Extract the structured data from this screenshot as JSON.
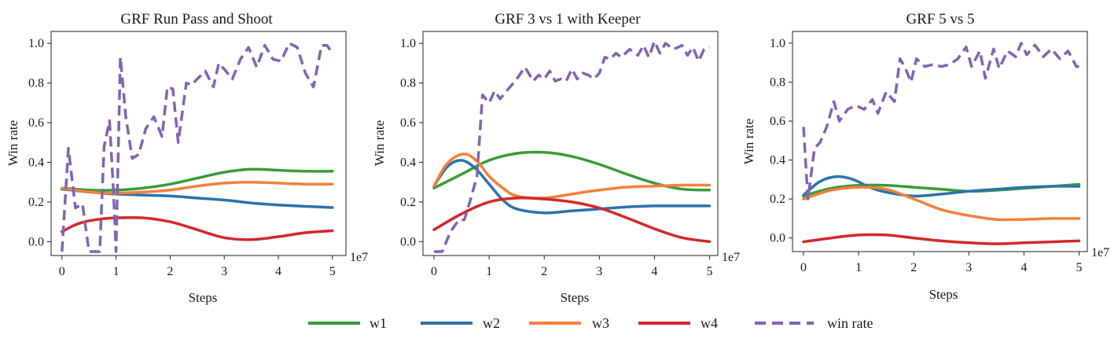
{
  "figure": {
    "legend": [
      {
        "key": "w1",
        "label": "w1",
        "color": "#3a9c3a",
        "dash": false
      },
      {
        "key": "w2",
        "label": "w2",
        "color": "#2c73ac",
        "dash": false
      },
      {
        "key": "w3",
        "label": "w3",
        "color": "#f5803a",
        "dash": false
      },
      {
        "key": "w4",
        "label": "w4",
        "color": "#d3282c",
        "dash": false
      },
      {
        "key": "win",
        "label": "win rate",
        "color": "#8064b4",
        "dash": true
      }
    ]
  },
  "chart_data": [
    {
      "type": "line",
      "title": "GRF Run Pass and Shoot",
      "xlabel": "Steps",
      "ylabel": "Win rate",
      "x_multiplier_label": "1e7",
      "xlim": [
        -0.2,
        5.25
      ],
      "ylim": [
        -0.07,
        1.06
      ],
      "xticks": [
        0,
        1,
        2,
        3,
        4,
        5
      ],
      "xtick_labels": [
        "0",
        "1",
        "2",
        "3",
        "4",
        "5"
      ],
      "yticks": [
        0.0,
        0.2,
        0.4,
        0.6,
        0.8,
        1.0
      ],
      "ytick_labels": [
        "0.0",
        "0.2",
        "0.4",
        "0.6",
        "0.8",
        "1.0"
      ],
      "series": [
        {
          "name": "w1",
          "color": "#3a9c3a",
          "dash": false,
          "x": [
            0,
            0.5,
            1.0,
            1.5,
            2.0,
            2.5,
            3.0,
            3.5,
            4.0,
            4.5,
            5.0
          ],
          "y": [
            0.27,
            0.26,
            0.26,
            0.27,
            0.29,
            0.32,
            0.35,
            0.365,
            0.36,
            0.355,
            0.355
          ]
        },
        {
          "name": "w2",
          "color": "#2c73ac",
          "dash": false,
          "x": [
            0,
            0.5,
            1.0,
            1.5,
            2.0,
            2.5,
            3.0,
            3.5,
            4.0,
            4.5,
            5.0
          ],
          "y": [
            0.265,
            0.25,
            0.24,
            0.235,
            0.23,
            0.22,
            0.21,
            0.195,
            0.185,
            0.178,
            0.172
          ]
        },
        {
          "name": "w3",
          "color": "#f5803a",
          "dash": false,
          "x": [
            0,
            0.5,
            1.0,
            1.5,
            2.0,
            2.5,
            3.0,
            3.5,
            4.0,
            4.5,
            5.0
          ],
          "y": [
            0.27,
            0.25,
            0.245,
            0.25,
            0.26,
            0.28,
            0.295,
            0.3,
            0.295,
            0.29,
            0.29
          ]
        },
        {
          "name": "w4",
          "color": "#d3282c",
          "dash": false,
          "x": [
            0,
            0.25,
            0.5,
            0.75,
            1.0,
            1.5,
            2.0,
            2.5,
            3.0,
            3.5,
            4.0,
            4.5,
            5.0
          ],
          "y": [
            0.05,
            0.085,
            0.105,
            0.115,
            0.12,
            0.12,
            0.1,
            0.06,
            0.02,
            0.01,
            0.025,
            0.045,
            0.055
          ]
        },
        {
          "name": "win rate",
          "color": "#8064b4",
          "dash": true,
          "x": [
            0,
            0.12,
            0.25,
            0.38,
            0.5,
            0.6,
            0.7,
            0.78,
            0.88,
            0.95,
            1.0,
            1.08,
            1.18,
            1.3,
            1.42,
            1.55,
            1.7,
            1.85,
            1.95,
            2.05,
            2.15,
            2.3,
            2.4,
            2.5,
            2.65,
            2.8,
            2.9,
            3.0,
            3.15,
            3.3,
            3.45,
            3.6,
            3.75,
            3.9,
            4.05,
            4.2,
            4.35,
            4.5,
            4.65,
            4.8,
            4.9,
            5.0
          ],
          "y": [
            -0.05,
            0.47,
            0.17,
            0.19,
            -0.05,
            -0.05,
            -0.05,
            0.48,
            0.61,
            0.27,
            -0.05,
            0.93,
            0.63,
            0.42,
            0.44,
            0.57,
            0.63,
            0.53,
            0.78,
            0.77,
            0.5,
            0.8,
            0.79,
            0.82,
            0.86,
            0.78,
            0.9,
            0.87,
            0.82,
            0.92,
            0.98,
            0.88,
            0.99,
            0.92,
            0.91,
            1.0,
            0.98,
            0.85,
            0.78,
            0.99,
            0.99,
            0.95
          ]
        }
      ]
    },
    {
      "type": "line",
      "title": "GRF 3 vs 1 with Keeper",
      "xlabel": "Steps",
      "ylabel": "Win rate",
      "x_multiplier_label": "1e7",
      "xlim": [
        -0.2,
        5.15
      ],
      "ylim": [
        -0.07,
        1.06
      ],
      "xticks": [
        0,
        1,
        2,
        3,
        4,
        5
      ],
      "xtick_labels": [
        "0",
        "1",
        "2",
        "3",
        "4",
        "5"
      ],
      "yticks": [
        0.0,
        0.2,
        0.4,
        0.6,
        0.8,
        1.0
      ],
      "ytick_labels": [
        "0.0",
        "0.2",
        "0.4",
        "0.6",
        "0.8",
        "1.0"
      ],
      "series": [
        {
          "name": "w1",
          "color": "#3a9c3a",
          "dash": false,
          "x": [
            0,
            0.5,
            1.0,
            1.5,
            2.0,
            2.5,
            3.0,
            3.5,
            4.0,
            4.5,
            5.0
          ],
          "y": [
            0.27,
            0.34,
            0.41,
            0.445,
            0.45,
            0.43,
            0.39,
            0.34,
            0.295,
            0.265,
            0.26
          ]
        },
        {
          "name": "w2",
          "color": "#2c73ac",
          "dash": false,
          "x": [
            0,
            0.25,
            0.5,
            0.75,
            1.0,
            1.25,
            1.5,
            2.0,
            2.5,
            3.0,
            3.5,
            4.0,
            4.5,
            5.0
          ],
          "y": [
            0.28,
            0.38,
            0.41,
            0.37,
            0.29,
            0.21,
            0.165,
            0.145,
            0.155,
            0.165,
            0.175,
            0.18,
            0.18,
            0.18
          ]
        },
        {
          "name": "w3",
          "color": "#f5803a",
          "dash": false,
          "x": [
            0,
            0.2,
            0.4,
            0.6,
            0.8,
            1.0,
            1.25,
            1.5,
            2.0,
            2.5,
            3.0,
            3.5,
            4.0,
            4.5,
            5.0
          ],
          "y": [
            0.28,
            0.38,
            0.43,
            0.44,
            0.4,
            0.33,
            0.27,
            0.23,
            0.22,
            0.24,
            0.26,
            0.275,
            0.28,
            0.285,
            0.285
          ]
        },
        {
          "name": "w4",
          "color": "#d3282c",
          "dash": false,
          "x": [
            0,
            0.5,
            1.0,
            1.5,
            2.0,
            2.5,
            3.0,
            3.5,
            4.0,
            4.5,
            5.0
          ],
          "y": [
            0.06,
            0.14,
            0.2,
            0.22,
            0.215,
            0.2,
            0.17,
            0.12,
            0.065,
            0.02,
            0.0
          ]
        },
        {
          "name": "win rate",
          "color": "#8064b4",
          "dash": true,
          "x": [
            0,
            0.15,
            0.3,
            0.45,
            0.55,
            0.65,
            0.78,
            0.88,
            1.0,
            1.1,
            1.2,
            1.35,
            1.5,
            1.65,
            1.8,
            1.9,
            2.0,
            2.1,
            2.2,
            2.3,
            2.4,
            2.5,
            2.6,
            2.7,
            2.8,
            2.9,
            3.0,
            3.1,
            3.2,
            3.3,
            3.4,
            3.55,
            3.7,
            3.8,
            3.9,
            4.0,
            4.1,
            4.2,
            4.35,
            4.5,
            4.6,
            4.7,
            4.8,
            4.9,
            5.0
          ],
          "y": [
            -0.05,
            -0.05,
            0.05,
            0.11,
            0.11,
            0.2,
            0.33,
            0.74,
            0.7,
            0.76,
            0.72,
            0.77,
            0.82,
            0.88,
            0.81,
            0.84,
            0.82,
            0.86,
            0.81,
            0.82,
            0.81,
            0.87,
            0.82,
            0.85,
            0.84,
            0.82,
            0.85,
            0.93,
            0.92,
            0.95,
            0.93,
            0.97,
            0.94,
            0.99,
            0.93,
            1.01,
            0.95,
            1.0,
            0.97,
            0.99,
            0.94,
            0.98,
            0.91,
            0.97,
            0.98
          ]
        }
      ]
    },
    {
      "type": "line",
      "title": "GRF 5 vs 5",
      "xlabel": "Steps",
      "ylabel": "Win rate",
      "x_multiplier_label": "1e7",
      "xlim": [
        -0.2,
        5.15
      ],
      "ylim": [
        -0.07,
        1.06
      ],
      "xticks": [
        0,
        1,
        2,
        3,
        4,
        5
      ],
      "xtick_labels": [
        "0",
        "1",
        "2",
        "3",
        "4",
        "5"
      ],
      "yticks": [
        0.0,
        0.2,
        0.4,
        0.6,
        0.8,
        1.0
      ],
      "ytick_labels": [
        "0.0",
        "0.2",
        "0.4",
        "0.6",
        "0.8",
        "1.0"
      ],
      "series": [
        {
          "name": "w1",
          "color": "#3a9c3a",
          "dash": false,
          "x": [
            0,
            0.5,
            1.0,
            1.5,
            2.0,
            2.5,
            3.0,
            3.5,
            4.0,
            4.5,
            5.0
          ],
          "y": [
            0.215,
            0.255,
            0.27,
            0.27,
            0.26,
            0.25,
            0.24,
            0.245,
            0.255,
            0.265,
            0.275
          ]
        },
        {
          "name": "w2",
          "color": "#2c73ac",
          "dash": false,
          "x": [
            0,
            0.3,
            0.6,
            0.9,
            1.2,
            1.5,
            2.0,
            2.5,
            3.0,
            3.5,
            4.0,
            4.5,
            5.0
          ],
          "y": [
            0.22,
            0.29,
            0.315,
            0.3,
            0.26,
            0.235,
            0.215,
            0.225,
            0.24,
            0.25,
            0.26,
            0.265,
            0.265
          ]
        },
        {
          "name": "w3",
          "color": "#f5803a",
          "dash": false,
          "x": [
            0,
            0.5,
            1.0,
            1.5,
            2.0,
            2.5,
            3.0,
            3.5,
            4.0,
            4.5,
            5.0
          ],
          "y": [
            0.2,
            0.245,
            0.26,
            0.25,
            0.2,
            0.145,
            0.115,
            0.095,
            0.095,
            0.1,
            0.1
          ]
        },
        {
          "name": "w4",
          "color": "#d3282c",
          "dash": false,
          "x": [
            0,
            0.5,
            1.0,
            1.5,
            2.0,
            2.5,
            3.0,
            3.5,
            4.0,
            4.5,
            5.0
          ],
          "y": [
            -0.02,
            0.0,
            0.015,
            0.015,
            0.0,
            -0.015,
            -0.025,
            -0.03,
            -0.025,
            -0.02,
            -0.015
          ]
        },
        {
          "name": "win rate",
          "color": "#8064b4",
          "dash": true,
          "x": [
            0,
            0.08,
            0.2,
            0.3,
            0.42,
            0.55,
            0.65,
            0.8,
            0.95,
            1.1,
            1.25,
            1.35,
            1.5,
            1.65,
            1.75,
            1.85,
            1.95,
            2.05,
            2.2,
            2.35,
            2.5,
            2.65,
            2.8,
            2.95,
            3.05,
            3.2,
            3.3,
            3.45,
            3.55,
            3.7,
            3.85,
            3.95,
            4.05,
            4.2,
            4.35,
            4.5,
            4.65,
            4.8,
            4.95,
            5.0
          ],
          "y": [
            0.57,
            0.2,
            0.46,
            0.49,
            0.57,
            0.7,
            0.6,
            0.66,
            0.68,
            0.66,
            0.71,
            0.64,
            0.75,
            0.7,
            0.92,
            0.87,
            0.8,
            0.92,
            0.88,
            0.89,
            0.88,
            0.89,
            0.92,
            0.98,
            0.88,
            0.96,
            0.82,
            0.97,
            0.87,
            0.96,
            0.93,
            1.0,
            0.94,
            0.99,
            0.93,
            0.97,
            0.92,
            0.96,
            0.88,
            0.88
          ]
        }
      ]
    }
  ]
}
